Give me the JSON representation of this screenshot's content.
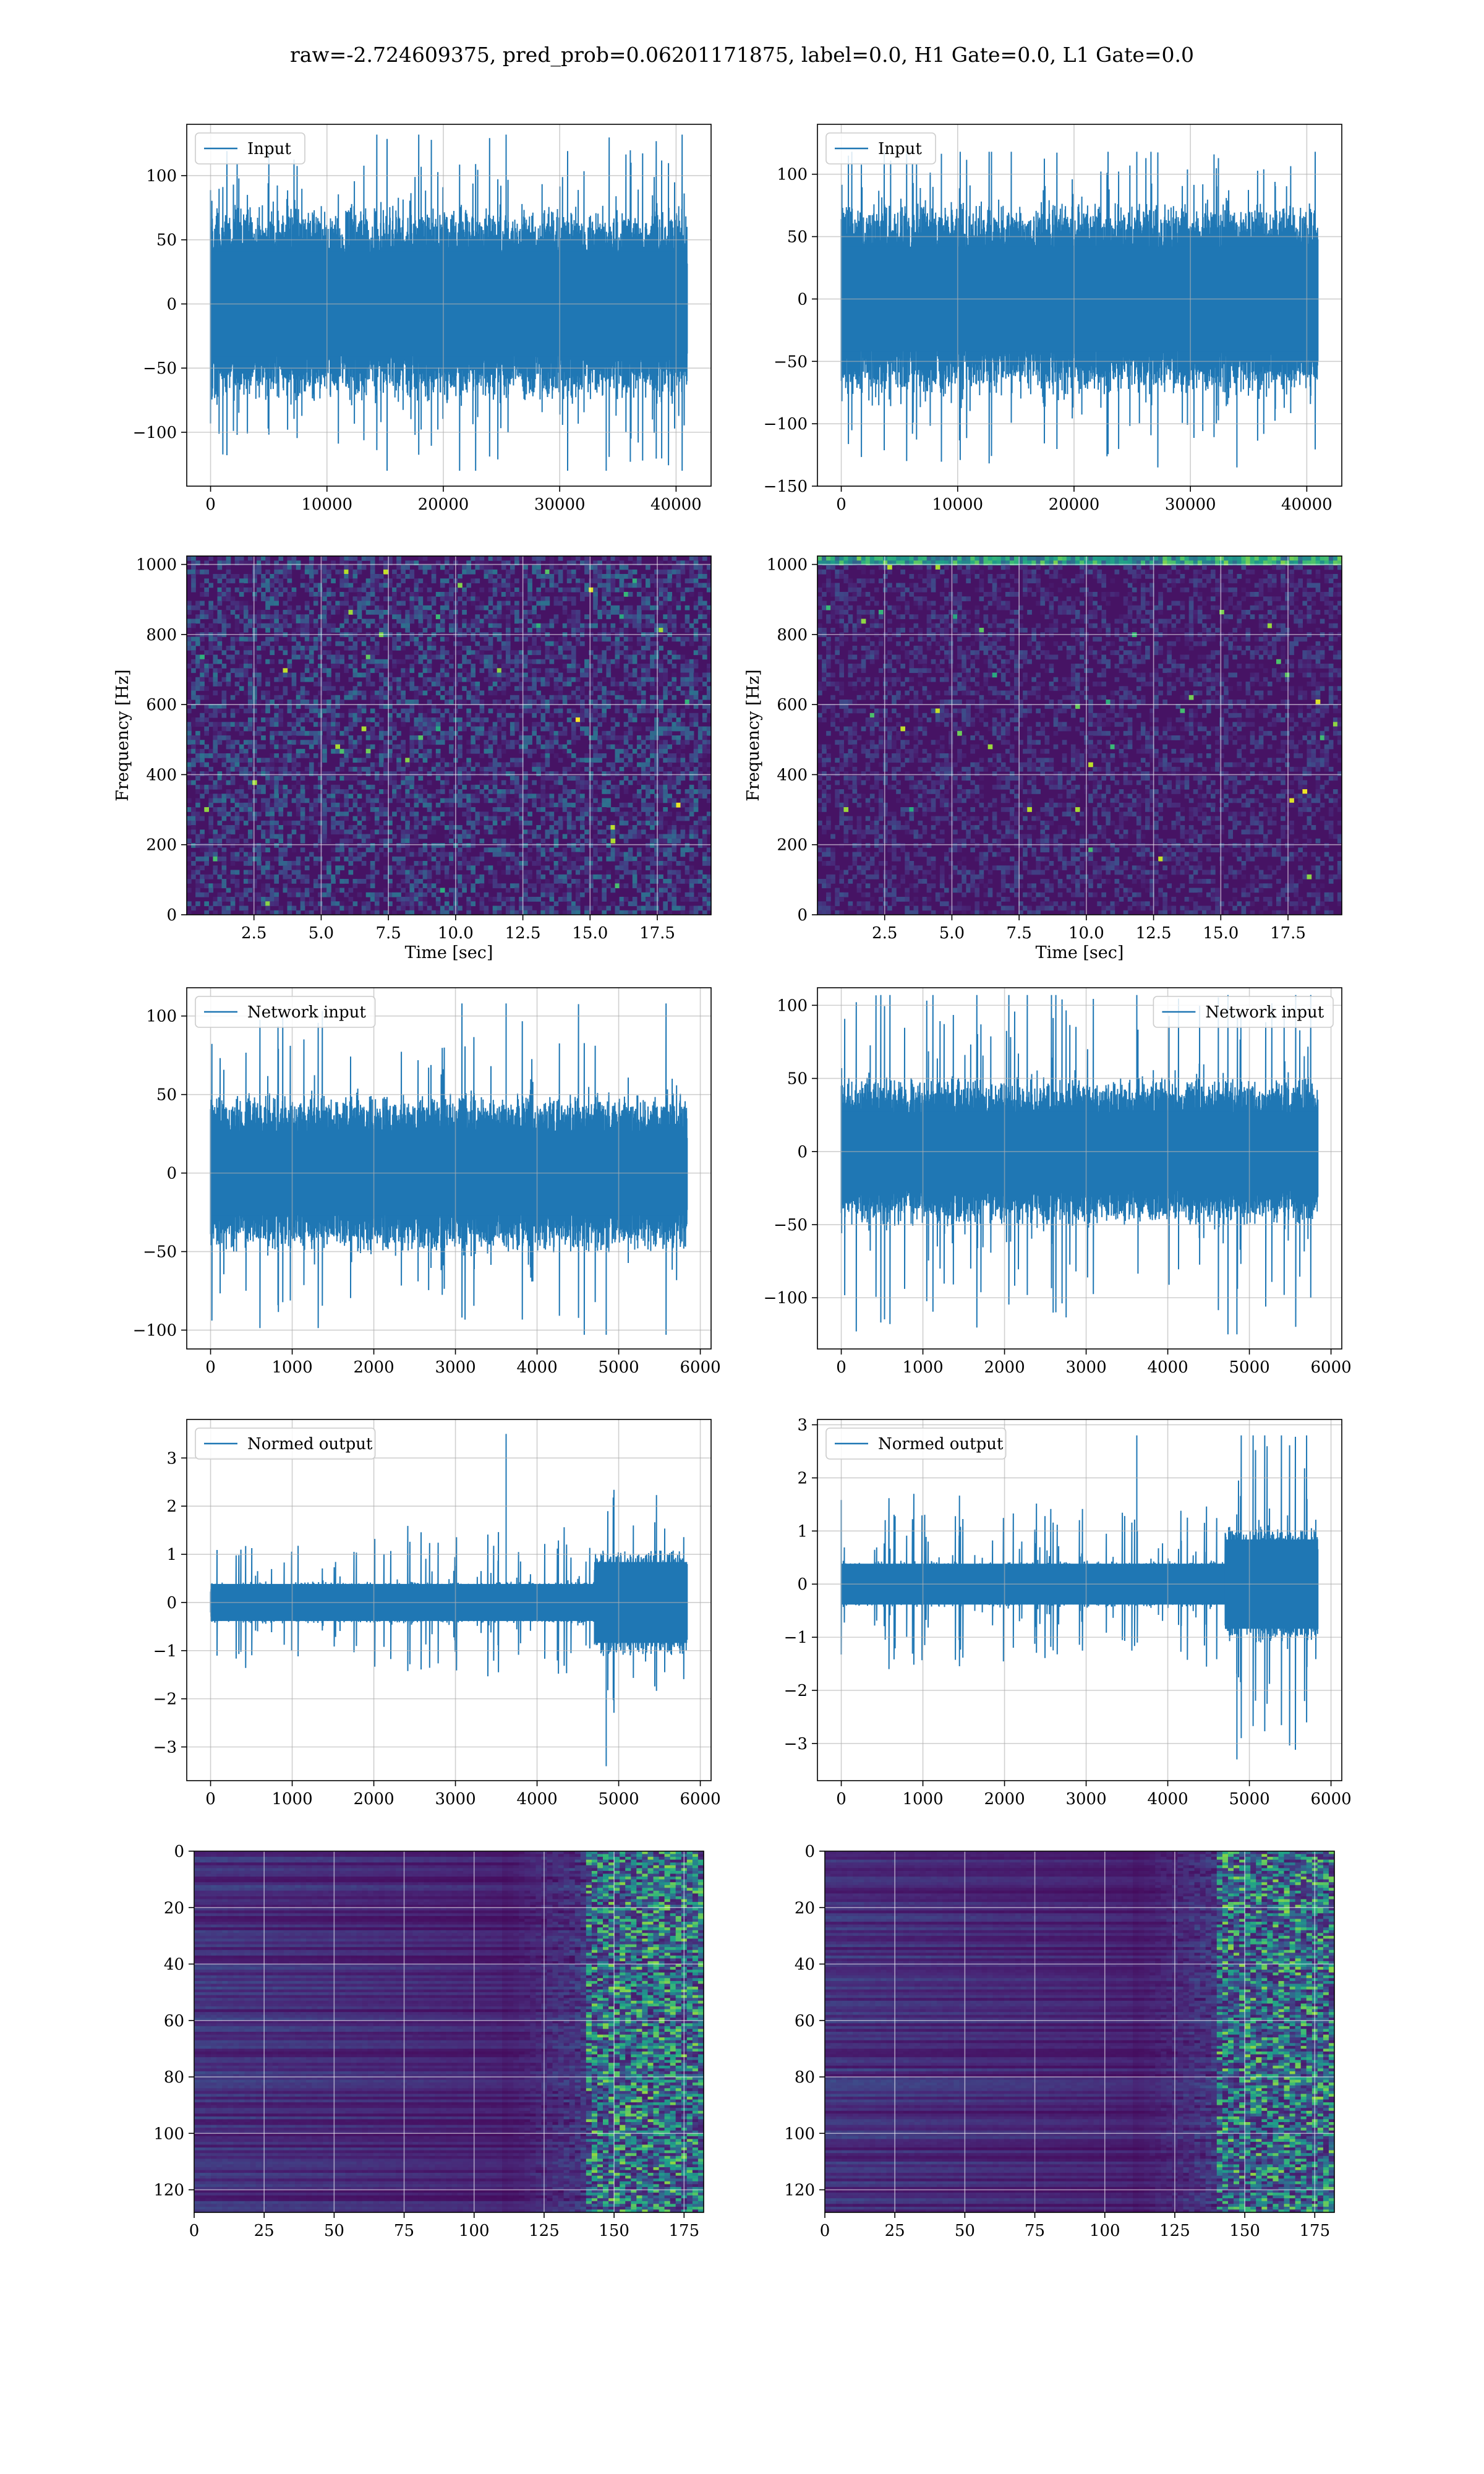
{
  "figure": {
    "title": "raw=-2.724609375, pred_prob=0.06201171875, label=0.0, H1 Gate=0.0, L1 Gate=0.0",
    "line_color": "#1f77b4"
  },
  "chart_data": [
    {
      "id": "r1c1",
      "type": "line",
      "legend": "Input",
      "legend_loc": "upper-left",
      "n_samples": 40960,
      "xlim": [
        -2048,
        43008
      ],
      "ylim": [
        -142,
        140
      ],
      "xticks": [
        0,
        10000,
        20000,
        30000,
        40000
      ],
      "yticks": [
        -100,
        -50,
        0,
        50,
        100
      ],
      "envelope": {
        "core": 68,
        "peak_max": 132,
        "peak_min": -130,
        "profile": "flat"
      },
      "grid": true
    },
    {
      "id": "r1c2",
      "type": "line",
      "legend": "Input",
      "legend_loc": "upper-left",
      "n_samples": 40960,
      "xlim": [
        -2048,
        43008
      ],
      "ylim": [
        -150,
        140
      ],
      "xticks": [
        0,
        10000,
        20000,
        30000,
        40000
      ],
      "yticks": [
        -150,
        -100,
        -50,
        0,
        50,
        100
      ],
      "envelope": {
        "core": 70,
        "peak_max": 118,
        "peak_min": -135,
        "profile": "flat"
      },
      "grid": true
    },
    {
      "id": "r2c1",
      "type": "heatmap",
      "variant": "spectrogram",
      "xlim": [
        0,
        19.5
      ],
      "ylim": [
        0,
        1024
      ],
      "xticks": [
        2.5,
        5.0,
        7.5,
        10.0,
        12.5,
        15.0,
        17.5
      ],
      "yticks": [
        0,
        200,
        400,
        600,
        800,
        1000
      ],
      "xlabel": "Time [sec]",
      "ylabel": "Frequency [Hz]",
      "colormap": "viridis",
      "grid": true
    },
    {
      "id": "r2c2",
      "type": "heatmap",
      "variant": "spectrogram",
      "xlim": [
        0,
        19.5
      ],
      "ylim": [
        0,
        1024
      ],
      "xticks": [
        2.5,
        5.0,
        7.5,
        10.0,
        12.5,
        15.0,
        17.5
      ],
      "yticks": [
        0,
        200,
        400,
        600,
        800,
        1000
      ],
      "xlabel": "Time [sec]",
      "ylabel": "Frequency [Hz]",
      "colormap": "viridis",
      "grid": true
    },
    {
      "id": "r3c1",
      "type": "line",
      "legend": "Network input",
      "legend_loc": "upper-left",
      "n_samples": 5840,
      "xlim": [
        -292,
        6132
      ],
      "ylim": [
        -112,
        118
      ],
      "xticks": [
        0,
        1000,
        2000,
        3000,
        4000,
        5000,
        6000
      ],
      "yticks": [
        -100,
        -50,
        0,
        50,
        100
      ],
      "envelope": {
        "core": 45,
        "peak_max": 108,
        "peak_min": -103,
        "profile": "flat"
      },
      "grid": true
    },
    {
      "id": "r3c2",
      "type": "line",
      "legend": "Network input",
      "legend_loc": "upper-right",
      "n_samples": 5840,
      "xlim": [
        -292,
        6132
      ],
      "ylim": [
        -135,
        112
      ],
      "xticks": [
        0,
        1000,
        2000,
        3000,
        4000,
        5000,
        6000
      ],
      "yticks": [
        -100,
        -50,
        0,
        50,
        100
      ],
      "envelope": {
        "core": 45,
        "peak_max": 107,
        "peak_min": -125,
        "profile": "flat"
      },
      "grid": true
    },
    {
      "id": "r4c1",
      "type": "line",
      "legend": "Normed output",
      "legend_loc": "upper-left",
      "n_samples": 5840,
      "xlim": [
        -292,
        6132
      ],
      "ylim": [
        -3.7,
        3.8
      ],
      "xticks": [
        0,
        1000,
        2000,
        3000,
        4000,
        5000,
        6000
      ],
      "yticks": [
        -3,
        -2,
        -1,
        0,
        1,
        2,
        3
      ],
      "envelope": {
        "core": 0.7,
        "peak_max": 3.5,
        "peak_min": -3.4,
        "profile": "burst",
        "burst_start": 4700
      },
      "grid": true
    },
    {
      "id": "r4c2",
      "type": "line",
      "legend": "Normed output",
      "legend_loc": "upper-left",
      "n_samples": 5840,
      "xlim": [
        -292,
        6132
      ],
      "ylim": [
        -3.7,
        3.1
      ],
      "xticks": [
        0,
        1000,
        2000,
        3000,
        4000,
        5000,
        6000
      ],
      "yticks": [
        -3,
        -2,
        -1,
        0,
        1,
        2,
        3
      ],
      "envelope": {
        "core": 0.7,
        "peak_max": 2.8,
        "peak_min": -3.3,
        "profile": "burst",
        "burst_start": 4700
      },
      "grid": true
    },
    {
      "id": "r5c1",
      "type": "heatmap",
      "variant": "feature-map",
      "xlim": [
        0,
        182
      ],
      "ylim": [
        128,
        0
      ],
      "xticks": [
        0,
        25,
        50,
        75,
        100,
        125,
        150,
        175
      ],
      "yticks": [
        0,
        20,
        40,
        60,
        80,
        100,
        120
      ],
      "colormap": "viridis",
      "grid": true
    },
    {
      "id": "r5c2",
      "type": "heatmap",
      "variant": "feature-map",
      "xlim": [
        0,
        182
      ],
      "ylim": [
        128,
        0
      ],
      "xticks": [
        0,
        25,
        50,
        75,
        100,
        125,
        150,
        175
      ],
      "yticks": [
        0,
        20,
        40,
        60,
        80,
        100,
        120
      ],
      "colormap": "viridis",
      "grid": true
    }
  ]
}
